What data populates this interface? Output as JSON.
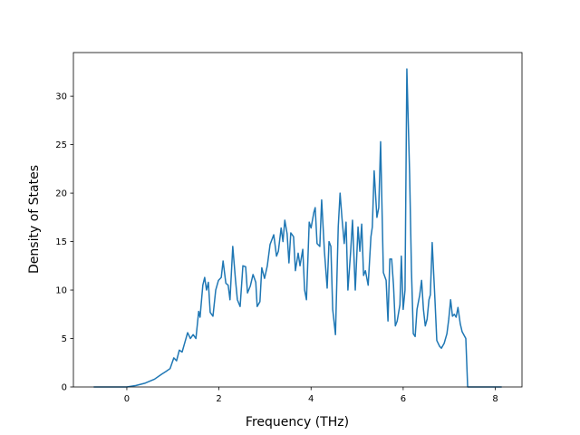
{
  "chart_data": {
    "type": "line",
    "xlabel": "Frequency (THz)",
    "ylabel": "Density of States",
    "xlim": [
      -1.16,
      8.58
    ],
    "ylim": [
      0,
      34.5
    ],
    "xticks": [
      0,
      2,
      4,
      6,
      8
    ],
    "yticks": [
      0,
      5,
      10,
      15,
      20,
      25,
      30
    ],
    "grid": false,
    "series": [
      {
        "color": "#1f77b4",
        "x": [
          -0.72,
          0,
          0.2,
          0.4,
          0.6,
          0.75,
          0.85,
          0.94,
          1.02,
          1.08,
          1.14,
          1.2,
          1.26,
          1.32,
          1.38,
          1.44,
          1.5,
          1.56,
          1.59,
          1.65,
          1.69,
          1.73,
          1.77,
          1.81,
          1.87,
          1.93,
          1.99,
          2.05,
          2.09,
          2.15,
          2.2,
          2.24,
          2.3,
          2.36,
          2.4,
          2.46,
          2.52,
          2.58,
          2.62,
          2.68,
          2.74,
          2.8,
          2.83,
          2.89,
          2.93,
          2.99,
          3.05,
          3.11,
          3.19,
          3.25,
          3.29,
          3.35,
          3.39,
          3.43,
          3.48,
          3.52,
          3.56,
          3.62,
          3.66,
          3.72,
          3.76,
          3.82,
          3.86,
          3.9,
          3.96,
          4.0,
          4.06,
          4.09,
          4.13,
          4.19,
          4.23,
          4.29,
          4.35,
          4.39,
          4.43,
          4.47,
          4.53,
          4.59,
          4.63,
          4.67,
          4.72,
          4.76,
          4.8,
          4.86,
          4.9,
          4.96,
          5.02,
          5.06,
          5.1,
          5.14,
          5.18,
          5.24,
          5.3,
          5.33,
          5.37,
          5.43,
          5.47,
          5.51,
          5.57,
          5.63,
          5.67,
          5.71,
          5.75,
          5.79,
          5.83,
          5.87,
          5.93,
          5.96,
          6.0,
          6.04,
          6.08,
          6.14,
          6.18,
          6.22,
          6.26,
          6.3,
          6.36,
          6.4,
          6.44,
          6.48,
          6.52,
          6.56,
          6.59,
          6.63,
          6.69,
          6.73,
          6.79,
          6.83,
          6.89,
          6.95,
          6.99,
          7.03,
          7.07,
          7.11,
          7.15,
          7.19,
          7.24,
          7.28,
          7.36,
          7.4,
          7.48,
          8.14
        ],
        "values": [
          0,
          0,
          0.15,
          0.4,
          0.8,
          1.3,
          1.6,
          1.9,
          3.0,
          2.7,
          3.8,
          3.6,
          4.6,
          5.6,
          5.0,
          5.4,
          5.0,
          7.8,
          7.2,
          10.5,
          11.3,
          10.0,
          10.8,
          7.7,
          7.3,
          10.0,
          11.0,
          11.3,
          13.0,
          10.7,
          10.5,
          9.0,
          14.5,
          11.0,
          9.0,
          8.3,
          12.5,
          12.4,
          9.7,
          10.4,
          11.6,
          10.8,
          8.3,
          8.8,
          12.3,
          11.2,
          12.5,
          14.7,
          15.7,
          13.5,
          14.0,
          16.4,
          15.0,
          17.2,
          15.8,
          12.8,
          15.9,
          15.5,
          12.0,
          13.8,
          12.5,
          14.2,
          10.0,
          9.0,
          17.0,
          16.4,
          18.0,
          18.5,
          14.8,
          14.5,
          19.3,
          14.0,
          10.2,
          15.0,
          14.5,
          8.0,
          5.4,
          16.5,
          20.0,
          17.5,
          14.8,
          17.0,
          10.0,
          14.0,
          17.2,
          10.0,
          16.5,
          14.0,
          16.8,
          11.5,
          12.0,
          10.5,
          15.5,
          16.5,
          22.3,
          17.5,
          18.5,
          25.3,
          11.8,
          11.0,
          6.8,
          13.2,
          13.2,
          10.5,
          6.3,
          6.8,
          8.5,
          13.5,
          8.0,
          10.0,
          32.8,
          22.0,
          12.0,
          5.5,
          5.2,
          8.0,
          9.5,
          11.0,
          8.0,
          6.3,
          7.0,
          9.0,
          9.5,
          14.9,
          9.0,
          4.8,
          4.2,
          4.0,
          4.5,
          5.5,
          7.0,
          9.0,
          7.3,
          7.5,
          7.2,
          8.2,
          6.5,
          5.7,
          5.0,
          0,
          0,
          0
        ]
      }
    ]
  }
}
